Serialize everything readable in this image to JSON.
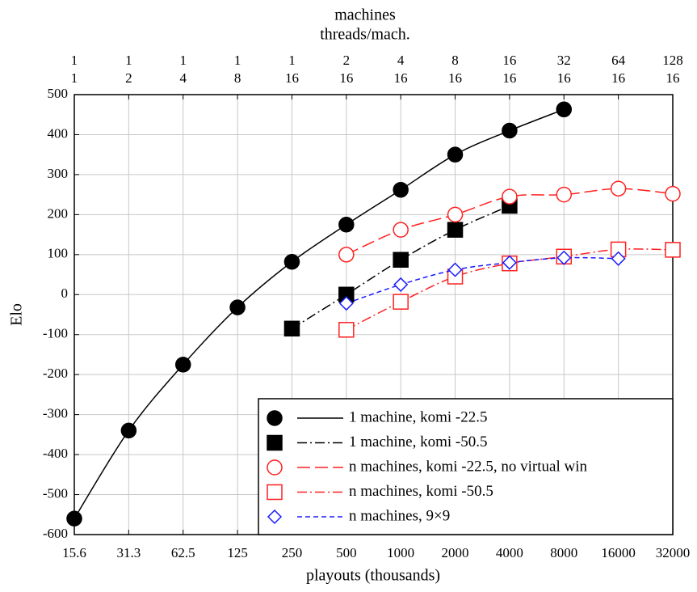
{
  "chart_data": {
    "type": "line",
    "top_axis_label_1": "machines",
    "top_axis_label_2": "threads/mach.",
    "top_machines": [
      "1",
      "1",
      "1",
      "1",
      "1",
      "2",
      "4",
      "8",
      "16",
      "32",
      "64",
      "128"
    ],
    "top_threads": [
      "1",
      "2",
      "4",
      "8",
      "16",
      "16",
      "16",
      "16",
      "16",
      "16",
      "16",
      "16"
    ],
    "y_label": "Elo",
    "x_label": "playouts (thousands)",
    "categories": [
      "15.6",
      "31.3",
      "62.5",
      "125",
      "250",
      "500",
      "1000",
      "2000",
      "4000",
      "8000",
      "16000",
      "32000"
    ],
    "ylim": [
      -600,
      500
    ],
    "yticks": [
      -600,
      -500,
      -400,
      -300,
      -200,
      -100,
      0,
      100,
      200,
      300,
      400,
      500
    ],
    "grid": true,
    "legend": "lower-right",
    "series": [
      {
        "name": "1 machine, komi -22.5",
        "color": "#000000",
        "marker": "circle",
        "filled": true,
        "linestyle": "solid",
        "values": [
          -560,
          -340,
          -175,
          -32,
          82,
          175,
          262,
          350,
          410,
          463,
          null,
          null
        ]
      },
      {
        "name": "1 machine, komi -50.5",
        "color": "#000000",
        "marker": "square",
        "filled": true,
        "linestyle": "dashdot",
        "values": [
          null,
          null,
          null,
          null,
          -85,
          0,
          87,
          162,
          222,
          null,
          null,
          null
        ]
      },
      {
        "name": "n machines, komi -22.5, no virtual win",
        "color": "#ff2020",
        "marker": "circle",
        "filled": false,
        "linestyle": "longdash",
        "values": [
          null,
          null,
          null,
          null,
          null,
          100,
          162,
          200,
          245,
          250,
          265,
          252
        ]
      },
      {
        "name": "n machines, komi -50.5",
        "color": "#ff2020",
        "marker": "square",
        "filled": false,
        "linestyle": "dashdot",
        "values": [
          null,
          null,
          null,
          null,
          null,
          -88,
          -18,
          45,
          78,
          95,
          113,
          112
        ]
      },
      {
        "name": "n machines, 9×9",
        "color": "#1a1aff",
        "marker": "diamond",
        "filled": false,
        "linestyle": "dashed",
        "values": [
          null,
          null,
          null,
          null,
          null,
          -22,
          25,
          62,
          80,
          92,
          90,
          null
        ]
      }
    ]
  }
}
